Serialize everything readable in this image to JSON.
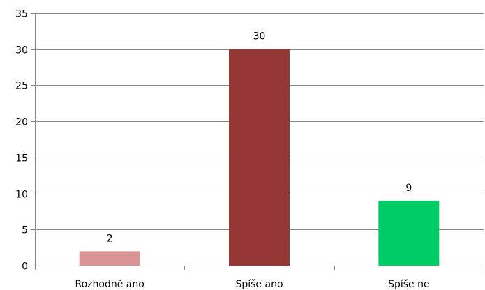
{
  "chart_data": {
    "type": "bar",
    "categories": [
      "Rozhodně ano",
      "Spíše ano",
      "Spíše ne"
    ],
    "values": [
      2,
      30,
      9
    ],
    "data_labels": [
      "2",
      "30",
      "9"
    ],
    "colors": [
      "#d99594",
      "#953735",
      "#00cc66"
    ],
    "ylim": [
      0,
      35
    ],
    "yticks": [
      0,
      5,
      10,
      15,
      20,
      25,
      30,
      35
    ],
    "ytick_labels": [
      "0",
      "5",
      "10",
      "15",
      "20",
      "25",
      "30",
      "35"
    ],
    "grid": true,
    "legend": false
  }
}
